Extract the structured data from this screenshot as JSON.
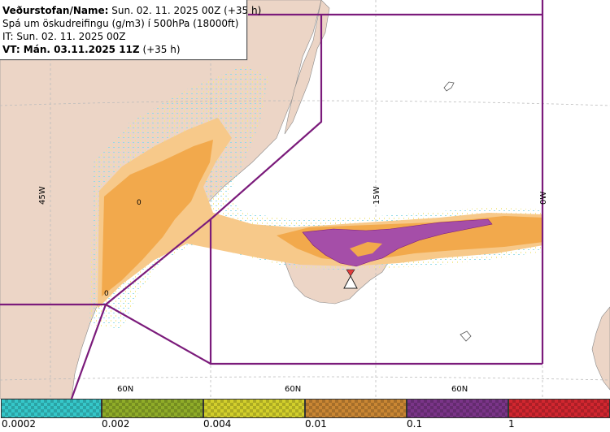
{
  "header": {
    "line1_label": "Veðurstofan/Name:",
    "line1_value": "Sun. 02. 11. 2025 00Z (+35 h)",
    "line2": "Spá um öskudreifingu (g/m3) í 500hPa (18000ft)",
    "line3": "IT: Sun. 02. 11. 2025 00Z",
    "line4_label": "VT: Mán. 03.11.2025 11Z",
    "line4_value": "(+35 h)"
  },
  "map": {
    "lon_labels": [
      "45W",
      "15W",
      "0W"
    ],
    "lat_labels": [
      "60N",
      "60N",
      "60N"
    ],
    "contour_labels": [
      "0",
      "0"
    ],
    "colors": {
      "land": "#ecd5c6",
      "sea": "#ffffff",
      "boundary": "#7b1b7b",
      "grid": "#bcbcbc",
      "ash_light": "#f7c98a",
      "ash_medium": "#f2a94c",
      "ash_high": "#a54ea8",
      "volcano": "#e23b3b"
    },
    "volcano_icon": "volcano-triangle-icon"
  },
  "legend": {
    "colors": [
      "#35c7c9",
      "#8fac28",
      "#d2cf2b",
      "#c98633",
      "#7a3488",
      "#d1262f"
    ],
    "labels": [
      "0.0002",
      "0.002",
      "0.004",
      "0.01",
      "0.1",
      "1"
    ]
  }
}
